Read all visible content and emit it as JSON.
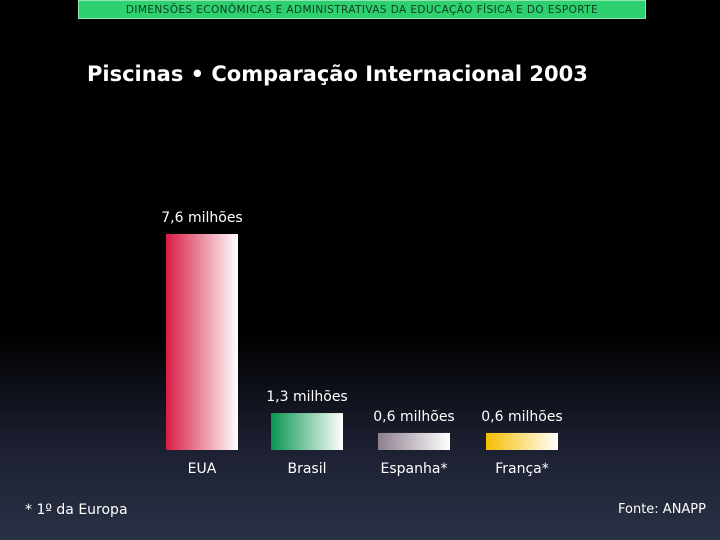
{
  "header": {
    "banner": "DIMENSÕES ECONÔMICAS E ADMINISTRATIVAS DA EDUCAÇÃO FÍSICA E DO ESPORTE"
  },
  "chart_data": {
    "type": "bar",
    "title": "Piscinas • Comparação Internacional 2003",
    "categories": [
      "EUA",
      "Brasil",
      "Espanha*",
      "França*"
    ],
    "values": [
      7.6,
      1.3,
      0.6,
      0.6
    ],
    "value_labels": [
      "7,6 milhões",
      "1,3 milhões",
      "0,6 milhões",
      "0,6 milhões"
    ],
    "colors": [
      "#d81c44",
      "#0a9650",
      "#8e7f8e",
      "#f5be00"
    ],
    "unit": "milhões",
    "xlabel": "",
    "ylabel": "",
    "grid": false
  },
  "footer": {
    "note": "* 1º da Europa",
    "source": "Fonte: ANAPP"
  }
}
